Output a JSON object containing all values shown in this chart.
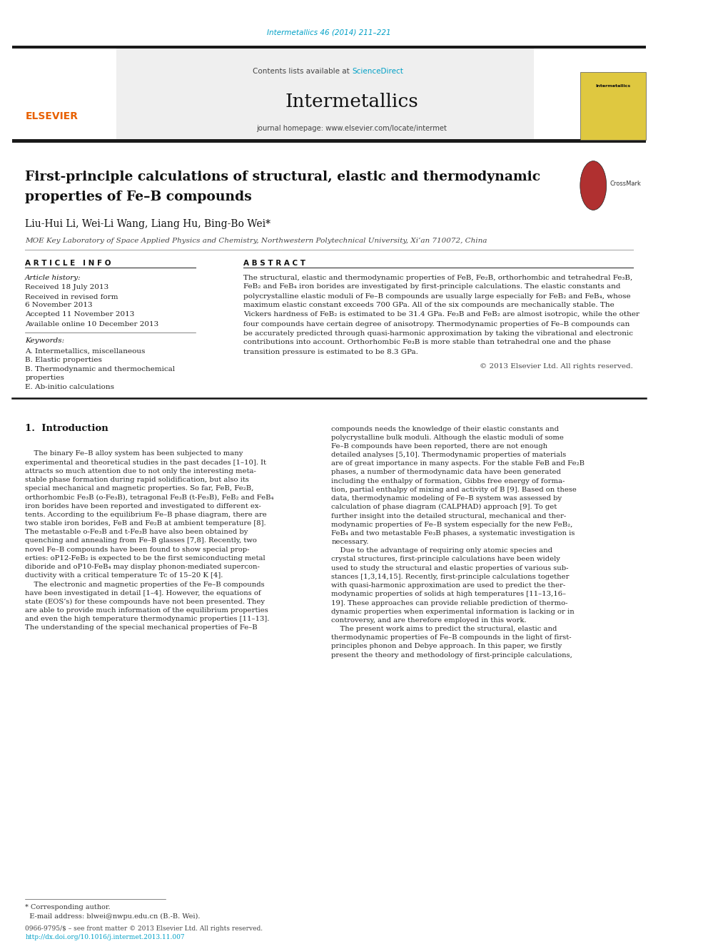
{
  "page_width": 9.92,
  "page_height": 13.23,
  "bg_color": "#ffffff",
  "top_citation": "Intermetallics 46 (2014) 211–221",
  "journal_name": "Intermetallics",
  "journal_homepage": "journal homepage: www.elsevier.com/locate/intermet",
  "contents_line": "Contents lists available at ScienceDirect",
  "paper_title_line1": "First-principle calculations of structural, elastic and thermodynamic",
  "paper_title_line2": "properties of Fe–B compounds",
  "authors": "Liu-Hui Li, Wei-Li Wang, Liang Hu, Bing-Bo Wei*",
  "affiliation": "MOE Key Laboratory of Space Applied Physics and Chemistry, Northwestern Polytechnical University, Xi’an 710072, China",
  "article_info_header": "A R T I C L E   I N F O",
  "abstract_header": "A B S T R A C T",
  "article_history_label": "Article history:",
  "dates": [
    "Received 18 July 2013",
    "Received in revised form",
    "6 November 2013",
    "Accepted 11 November 2013",
    "Available online 10 December 2013"
  ],
  "keywords_label": "Keywords:",
  "keywords": [
    "A. Intermetallics, miscellaneous",
    "B. Elastic properties",
    "B. Thermodynamic and thermochemical",
    "properties",
    "E. Ab-initio calculations"
  ],
  "abstract_lines": [
    "The structural, elastic and thermodynamic properties of FeB, Fe₂B, orthorhombic and tetrahedral Fe₃B,",
    "FeB₂ and FeB₄ iron borides are investigated by first-principle calculations. The elastic constants and",
    "polycrystalline elastic moduli of Fe–B compounds are usually large especially for FeB₂ and FeB₄, whose",
    "maximum elastic constant exceeds 700 GPa. All of the six compounds are mechanically stable. The",
    "Vickers hardness of FeB₂ is estimated to be 31.4 GPa. Fe₃B and FeB₂ are almost isotropic, while the other",
    "four compounds have certain degree of anisotropy. Thermodynamic properties of Fe–B compounds can",
    "be accurately predicted through quasi-harmonic approximation by taking the vibrational and electronic",
    "contributions into account. Orthorhombic Fe₃B is more stable than tetrahedral one and the phase",
    "transition pressure is estimated to be 8.3 GPa."
  ],
  "copyright": "© 2013 Elsevier Ltd. All rights reserved.",
  "section1_title": "1.  Introduction",
  "intro_col1_lines": [
    "    The binary Fe–B alloy system has been subjected to many",
    "experimental and theoretical studies in the past decades [1–10]. It",
    "attracts so much attention due to not only the interesting meta-",
    "stable phase formation during rapid solidification, but also its",
    "special mechanical and magnetic properties. So far, FeB, Fe₂B,",
    "orthorhombic Fe₃B (o-Fe₃B), tetragonal Fe₃B (t-Fe₃B), FeB₂ and FeB₄",
    "iron borides have been reported and investigated to different ex-",
    "tents. According to the equilibrium Fe–B phase diagram, there are",
    "two stable iron borides, FeB and Fe₂B at ambient temperature [8].",
    "The metastable o-Fe₃B and t-Fe₃B have also been obtained by",
    "quenching and annealing from Fe–B glasses [7,8]. Recently, two",
    "novel Fe–B compounds have been found to show special prop-",
    "erties: oP12-FeB₂ is expected to be the first semiconducting metal",
    "diboride and oP10-FeB₄ may display phonon-mediated supercon-",
    "ductivity with a critical temperature Tc of 15–20 K [4].",
    "    The electronic and magnetic properties of the Fe–B compounds",
    "have been investigated in detail [1–4]. However, the equations of",
    "state (EOS’s) for these compounds have not been presented. They",
    "are able to provide much information of the equilibrium properties",
    "and even the high temperature thermodynamic properties [11–13].",
    "The understanding of the special mechanical properties of Fe–B"
  ],
  "intro_col2_lines": [
    "compounds needs the knowledge of their elastic constants and",
    "polycrystalline bulk moduli. Although the elastic moduli of some",
    "Fe–B compounds have been reported, there are not enough",
    "detailed analyses [5,10]. Thermodynamic properties of materials",
    "are of great importance in many aspects. For the stable FeB and Fe₂B",
    "phases, a number of thermodynamic data have been generated",
    "including the enthalpy of formation, Gibbs free energy of forma-",
    "tion, partial enthalpy of mixing and activity of B [9]. Based on these",
    "data, thermodynamic modeling of Fe–B system was assessed by",
    "calculation of phase diagram (CALPHAD) approach [9]. To get",
    "further insight into the detailed structural, mechanical and ther-",
    "modynamic properties of Fe–B system especially for the new FeB₂,",
    "FeB₄ and two metastable Fe₃B phases, a systematic investigation is",
    "necessary.",
    "    Due to the advantage of requiring only atomic species and",
    "crystal structures, first-principle calculations have been widely",
    "used to study the structural and elastic properties of various sub-",
    "stances [1,3,14,15]. Recently, first-principle calculations together",
    "with quasi-harmonic approximation are used to predict the ther-",
    "modynamic properties of solids at high temperatures [11–13,16–",
    "19]. These approaches can provide reliable prediction of thermo-",
    "dynamic properties when experimental information is lacking or in",
    "controversy, and are therefore employed in this work.",
    "    The present work aims to predict the structural, elastic and",
    "thermodynamic properties of Fe–B compounds in the light of first-",
    "principles phonon and Debye approach. In this paper, we firstly",
    "present the theory and methodology of first-principle calculations,"
  ],
  "footer_star_note": "* Corresponding author.",
  "footer_email": "  E-mail address: blwei@nwpu.edu.cn (B.-B. Wei).",
  "footer_line1": "0966-9795/$ – see front matter © 2013 Elsevier Ltd. All rights reserved.",
  "footer_line2": "http://dx.doi.org/10.1016/j.intermet.2013.11.007",
  "header_bar_color": "#1a1a1a",
  "elsevier_color": "#e86000",
  "sciencedirect_color": "#00a0c6",
  "link_color": "#00a0c6",
  "citation_color": "#00a0c6"
}
